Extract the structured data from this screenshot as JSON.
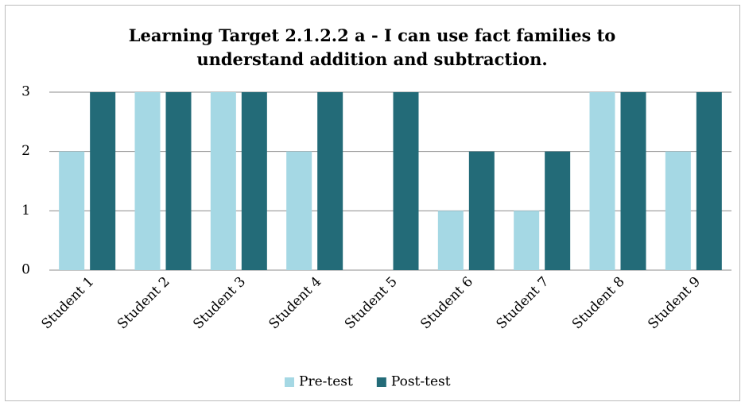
{
  "chart_data": {
    "type": "bar",
    "title": "Learning Target 2.1.2.2 a - I can use fact families to understand addition and subtraction.",
    "categories": [
      "Student 1",
      "Student 2",
      "Student 3",
      "Student 4",
      "Student 5",
      "Student 6",
      "Student 7",
      "Student 8",
      "Student 9"
    ],
    "series": [
      {
        "name": "Pre-test",
        "color": "#a5d8e4",
        "values": [
          2,
          3,
          3,
          2,
          0,
          1,
          1,
          3,
          2
        ]
      },
      {
        "name": "Post-test",
        "color": "#236b78",
        "values": [
          3,
          3,
          3,
          3,
          3,
          2,
          2,
          3,
          3
        ]
      }
    ],
    "ylim": [
      0,
      3
    ],
    "yticks": [
      0,
      1,
      2,
      3
    ],
    "grid": true,
    "legend": "bottom"
  }
}
